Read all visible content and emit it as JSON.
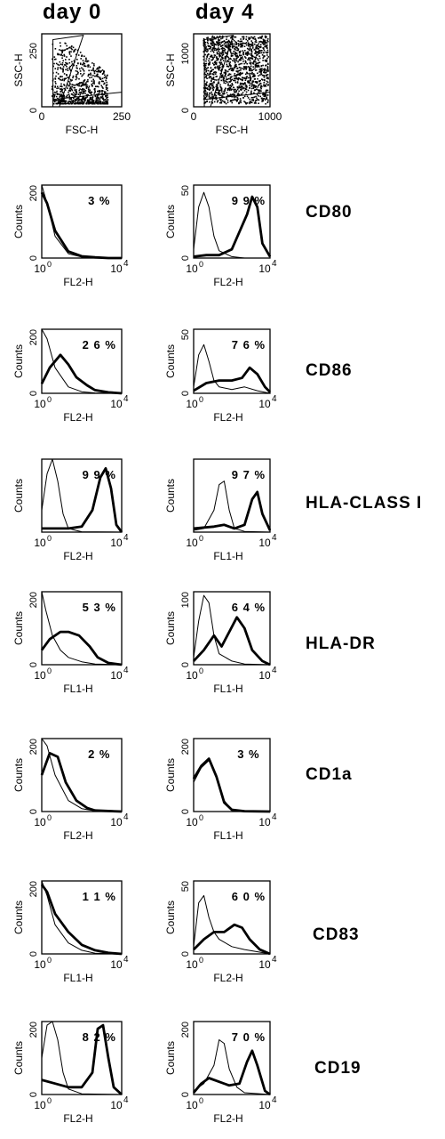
{
  "column_headers": [
    "day  0",
    "day  4"
  ],
  "chart_data": [
    {
      "type": "scatter",
      "column": "day 0",
      "xlabel": "FSC-H",
      "ylabel": "SSC-H",
      "xlim": [
        0,
        250
      ],
      "ylim": [
        0,
        250
      ],
      "xticks": [
        "0",
        "250"
      ],
      "yticks": [
        "0",
        "250"
      ]
    },
    {
      "type": "scatter",
      "column": "day 4",
      "xlabel": "FSC-H",
      "ylabel": "SSC-H",
      "xlim": [
        0,
        1000
      ],
      "ylim": [
        0,
        1000
      ],
      "xticks": [
        "0",
        "1000"
      ],
      "yticks": [
        "0",
        "1000"
      ]
    },
    {
      "type": "line",
      "marker": "CD80",
      "column": "day 0",
      "xlabel": "FL2-H",
      "ylabel": "Counts",
      "yticks": [
        "0",
        "200"
      ],
      "ylim": [
        0,
        200
      ],
      "percent": "3 %",
      "series": [
        {
          "style": "thin",
          "x": [
            1,
            1.2,
            1.5,
            2,
            2.5,
            3,
            3.5,
            4
          ],
          "y": [
            200,
            150,
            60,
            12,
            3,
            1,
            0,
            0
          ]
        },
        {
          "style": "thick",
          "x": [
            1,
            1.2,
            1.5,
            2,
            2.5,
            3,
            3.5,
            4
          ],
          "y": [
            180,
            150,
            75,
            18,
            5,
            2,
            0,
            0
          ]
        }
      ]
    },
    {
      "type": "line",
      "marker": "CD80",
      "column": "day 4",
      "xlabel": "FL2-H",
      "ylabel": "Counts",
      "yticks": [
        "0",
        "50"
      ],
      "ylim": [
        0,
        50
      ],
      "percent": "9 9 %",
      "series": [
        {
          "style": "thin",
          "x": [
            1,
            1.2,
            1.4,
            1.6,
            1.8,
            2,
            2.5,
            3,
            3.5,
            4
          ],
          "y": [
            6,
            35,
            45,
            35,
            15,
            5,
            1,
            0,
            0,
            0
          ]
        },
        {
          "style": "thick",
          "x": [
            1,
            1.5,
            2,
            2.5,
            2.8,
            3.1,
            3.3,
            3.5,
            3.7,
            4
          ],
          "y": [
            1,
            2,
            2,
            6,
            18,
            30,
            42,
            35,
            10,
            1
          ]
        }
      ]
    },
    {
      "type": "line",
      "marker": "CD86",
      "column": "day 0",
      "xlabel": "FL2-H",
      "ylabel": "Counts",
      "yticks": [
        "0",
        "200"
      ],
      "ylim": [
        0,
        200
      ],
      "percent": "2 6 %",
      "series": [
        {
          "style": "thin",
          "x": [
            1,
            1.2,
            1.5,
            2,
            2.5,
            3,
            4
          ],
          "y": [
            200,
            170,
            80,
            20,
            5,
            1,
            0
          ]
        },
        {
          "style": "thick",
          "x": [
            1,
            1.3,
            1.7,
            2,
            2.3,
            2.7,
            3,
            3.5,
            4
          ],
          "y": [
            30,
            80,
            120,
            90,
            50,
            25,
            10,
            3,
            0
          ]
        }
      ]
    },
    {
      "type": "line",
      "marker": "CD86",
      "column": "day 4",
      "xlabel": "FL2-H",
      "ylabel": "Counts",
      "yticks": [
        "0",
        "50"
      ],
      "ylim": [
        0,
        50
      ],
      "percent": "7 6 %",
      "series": [
        {
          "style": "thin",
          "x": [
            1,
            1.2,
            1.4,
            1.6,
            1.8,
            2,
            2.5,
            3,
            3.5,
            4
          ],
          "y": [
            5,
            30,
            38,
            25,
            10,
            5,
            3,
            5,
            2,
            0
          ]
        },
        {
          "style": "thick",
          "x": [
            1,
            1.5,
            2,
            2.5,
            2.9,
            3.2,
            3.5,
            3.8,
            4
          ],
          "y": [
            2,
            8,
            10,
            10,
            12,
            20,
            15,
            5,
            1
          ]
        }
      ]
    },
    {
      "type": "line",
      "marker": "HLA-CLASS  I",
      "column": "day 0",
      "xlabel": "FL2-H",
      "ylabel": "Counts",
      "yticks": [],
      "ylim": [
        0,
        200
      ],
      "percent": "9 9 %",
      "series": [
        {
          "style": "thin",
          "x": [
            1,
            1.2,
            1.4,
            1.6,
            1.8,
            2,
            2.5,
            4
          ],
          "y": [
            60,
            160,
            200,
            140,
            50,
            10,
            1,
            0
          ]
        },
        {
          "style": "thick",
          "x": [
            1,
            2,
            2.5,
            2.9,
            3.2,
            3.4,
            3.6,
            3.8,
            4
          ],
          "y": [
            10,
            10,
            15,
            60,
            150,
            175,
            120,
            20,
            0
          ]
        }
      ]
    },
    {
      "type": "line",
      "marker": "HLA-CLASS  I",
      "column": "day 4",
      "xlabel": "FL1-H",
      "ylabel": "Counts",
      "yticks": [],
      "ylim": [
        0,
        200
      ],
      "percent": "9 7 %",
      "series": [
        {
          "style": "thin",
          "x": [
            1,
            1.4,
            1.8,
            2,
            2.2,
            2.4,
            2.6,
            3,
            4
          ],
          "y": [
            5,
            10,
            60,
            130,
            140,
            60,
            10,
            2,
            0
          ]
        },
        {
          "style": "thick",
          "x": [
            1,
            1.8,
            2.2,
            2.6,
            3,
            3.3,
            3.5,
            3.7,
            4
          ],
          "y": [
            10,
            15,
            20,
            10,
            20,
            90,
            110,
            50,
            5
          ]
        }
      ]
    },
    {
      "type": "line",
      "marker": "HLA-DR",
      "column": "day 0",
      "xlabel": "FL1-H",
      "ylabel": "Counts",
      "yticks": [
        "0",
        "200"
      ],
      "ylim": [
        0,
        200
      ],
      "percent": "5 3 %",
      "series": [
        {
          "style": "thin",
          "x": [
            1,
            1.15,
            1.4,
            1.7,
            2,
            2.5,
            3,
            4
          ],
          "y": [
            200,
            150,
            80,
            40,
            20,
            8,
            2,
            0
          ]
        },
        {
          "style": "thick",
          "x": [
            1,
            1.3,
            1.7,
            2,
            2.4,
            2.8,
            3.1,
            3.5,
            4
          ],
          "y": [
            40,
            70,
            90,
            90,
            80,
            50,
            20,
            5,
            0
          ]
        }
      ]
    },
    {
      "type": "line",
      "marker": "HLA-DR",
      "column": "day 4",
      "xlabel": "FL1-H",
      "ylabel": "Counts",
      "yticks": [
        "0",
        "100"
      ],
      "ylim": [
        0,
        100
      ],
      "percent": "6 4 %",
      "series": [
        {
          "style": "thin",
          "x": [
            1,
            1.2,
            1.4,
            1.6,
            1.8,
            2,
            2.5,
            3,
            4
          ],
          "y": [
            10,
            60,
            95,
            85,
            40,
            15,
            5,
            1,
            0
          ]
        },
        {
          "style": "thick",
          "x": [
            1,
            1.4,
            1.8,
            2.1,
            2.4,
            2.7,
            3,
            3.3,
            3.7,
            4
          ],
          "y": [
            5,
            20,
            40,
            25,
            45,
            65,
            50,
            20,
            5,
            0
          ]
        }
      ]
    },
    {
      "type": "line",
      "marker": "CD1a",
      "column": "day 0",
      "xlabel": "FL2-H",
      "ylabel": "Counts",
      "yticks": [
        "0",
        "200"
      ],
      "ylim": [
        0,
        200
      ],
      "percent": "2 %",
      "series": [
        {
          "style": "thin",
          "x": [
            1,
            1.2,
            1.5,
            2,
            2.5,
            3,
            4
          ],
          "y": [
            200,
            180,
            100,
            30,
            8,
            2,
            0
          ]
        },
        {
          "style": "thick",
          "x": [
            1,
            1.3,
            1.6,
            1.9,
            2.3,
            2.7,
            3,
            4
          ],
          "y": [
            100,
            160,
            150,
            80,
            30,
            10,
            3,
            0
          ]
        }
      ]
    },
    {
      "type": "line",
      "marker": "CD1a",
      "column": "day 4",
      "xlabel": "FL1-H",
      "ylabel": "Counts",
      "yticks": [
        "0",
        "200"
      ],
      "ylim": [
        0,
        200
      ],
      "percent": "3 %",
      "series": [
        {
          "style": "thin",
          "x": [
            1,
            1.3,
            1.6,
            1.9,
            2.2,
            2.5,
            3,
            4
          ],
          "y": [
            80,
            120,
            140,
            100,
            30,
            5,
            1,
            0
          ]
        },
        {
          "style": "thick",
          "x": [
            1,
            1.3,
            1.6,
            1.9,
            2.2,
            2.5,
            3,
            4
          ],
          "y": [
            90,
            125,
            145,
            95,
            25,
            5,
            1,
            0
          ]
        }
      ]
    },
    {
      "type": "line",
      "marker": "CD83",
      "column": "day 0",
      "xlabel": "FL1-H",
      "ylabel": "Counts",
      "yticks": [
        "0",
        "200"
      ],
      "ylim": [
        0,
        200
      ],
      "percent": "1 1 %",
      "series": [
        {
          "style": "thin",
          "x": [
            1,
            1.2,
            1.5,
            2,
            2.5,
            3,
            4
          ],
          "y": [
            200,
            160,
            80,
            30,
            10,
            2,
            0
          ]
        },
        {
          "style": "thick",
          "x": [
            1,
            1.2,
            1.5,
            2,
            2.5,
            3,
            3.5,
            4
          ],
          "y": [
            190,
            170,
            110,
            60,
            25,
            10,
            3,
            0
          ]
        }
      ]
    },
    {
      "type": "line",
      "marker": "CD83",
      "column": "day 4",
      "xlabel": "FL2-H",
      "ylabel": "Counts",
      "yticks": [
        "0",
        "50"
      ],
      "ylim": [
        0,
        50
      ],
      "percent": "6 0 %",
      "series": [
        {
          "style": "thin",
          "x": [
            1,
            1.2,
            1.4,
            1.6,
            1.8,
            2,
            2.5,
            3,
            4
          ],
          "y": [
            5,
            35,
            40,
            25,
            15,
            10,
            5,
            3,
            0
          ]
        },
        {
          "style": "thick",
          "x": [
            1,
            1.4,
            1.8,
            2.2,
            2.6,
            2.9,
            3.2,
            3.6,
            4
          ],
          "y": [
            3,
            10,
            15,
            15,
            20,
            18,
            10,
            3,
            0
          ]
        }
      ]
    },
    {
      "type": "line",
      "marker": "CD19",
      "column": "day 0",
      "xlabel": "FL2-H",
      "ylabel": "Counts",
      "yticks": [
        "0",
        "200"
      ],
      "ylim": [
        0,
        200
      ],
      "percent": "8 2 %",
      "series": [
        {
          "style": "thin",
          "x": [
            1,
            1.2,
            1.4,
            1.6,
            1.8,
            2,
            2.5,
            4
          ],
          "y": [
            100,
            190,
            200,
            150,
            60,
            15,
            2,
            0
          ]
        },
        {
          "style": "thick",
          "x": [
            1,
            1.5,
            2,
            2.5,
            2.9,
            3.1,
            3.3,
            3.5,
            3.7,
            4
          ],
          "y": [
            40,
            30,
            20,
            20,
            60,
            180,
            190,
            100,
            20,
            0
          ]
        }
      ]
    },
    {
      "type": "line",
      "marker": "CD19",
      "column": "day 4",
      "xlabel": "FL2-H",
      "ylabel": "Counts",
      "yticks": [
        "0",
        "200"
      ],
      "ylim": [
        0,
        200
      ],
      "percent": "7 0 %",
      "series": [
        {
          "style": "thin",
          "x": [
            1,
            1.4,
            1.8,
            2,
            2.2,
            2.4,
            2.7,
            3,
            4
          ],
          "y": [
            10,
            30,
            80,
            150,
            140,
            70,
            20,
            5,
            0
          ]
        },
        {
          "style": "thick",
          "x": [
            1,
            1.3,
            1.6,
            2,
            2.4,
            2.8,
            3.1,
            3.3,
            3.5,
            3.8,
            4
          ],
          "y": [
            5,
            30,
            45,
            35,
            25,
            30,
            90,
            120,
            80,
            10,
            0
          ]
        }
      ]
    }
  ],
  "row_labels": [
    "CD80",
    "CD86",
    "HLA-CLASS  I",
    "HLA-DR",
    "CD1a",
    "CD83",
    "CD19"
  ]
}
